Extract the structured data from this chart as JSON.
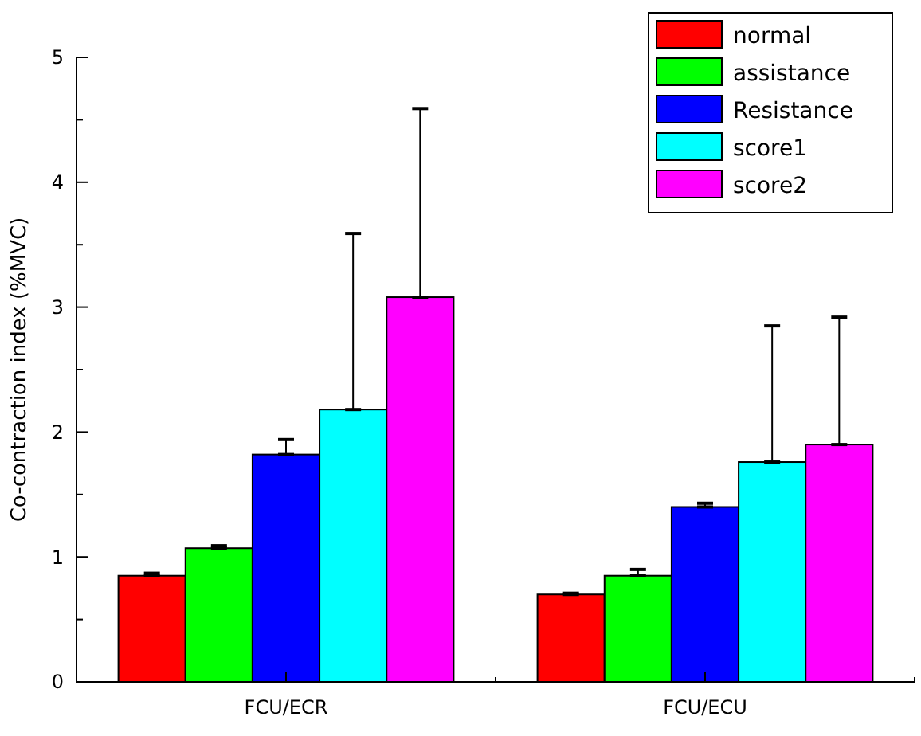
{
  "chart_data": {
    "type": "bar",
    "ylabel": "Co-contraction index (%MVC)",
    "categories": [
      "FCU/ECR",
      "FCU/ECU"
    ],
    "series": [
      {
        "name": "normal",
        "color": "#ff0000",
        "values": [
          0.85,
          0.7
        ],
        "errors": [
          [
            0.85,
            0.87
          ],
          [
            0.7,
            0.71
          ]
        ]
      },
      {
        "name": "assistance",
        "color": "#00ff00",
        "values": [
          1.07,
          0.85
        ],
        "errors": [
          [
            1.07,
            1.09
          ],
          [
            0.85,
            0.9
          ]
        ]
      },
      {
        "name": "Resistance",
        "color": "#0000ff",
        "values": [
          1.82,
          1.4
        ],
        "errors": [
          [
            1.82,
            1.94
          ],
          [
            1.4,
            1.43
          ]
        ]
      },
      {
        "name": "score1",
        "color": "#00ffff",
        "values": [
          2.18,
          1.76
        ],
        "errors": [
          [
            2.18,
            3.59
          ],
          [
            1.76,
            2.85
          ]
        ]
      },
      {
        "name": "score2",
        "color": "#ff00ff",
        "values": [
          3.08,
          1.9
        ],
        "errors": [
          [
            3.08,
            4.59
          ],
          [
            1.9,
            2.92
          ]
        ]
      }
    ],
    "ylim": [
      0,
      5
    ],
    "yticks": [
      0,
      {
        "value": 0.5,
        "label": null
      },
      1,
      {
        "value": 1.5,
        "label": null
      },
      2,
      {
        "value": 2.5,
        "label": null
      },
      3,
      {
        "value": 3.5,
        "label": null
      },
      4,
      {
        "value": 4.5,
        "label": null
      },
      5
    ],
    "grid": false,
    "legend": "top right"
  }
}
